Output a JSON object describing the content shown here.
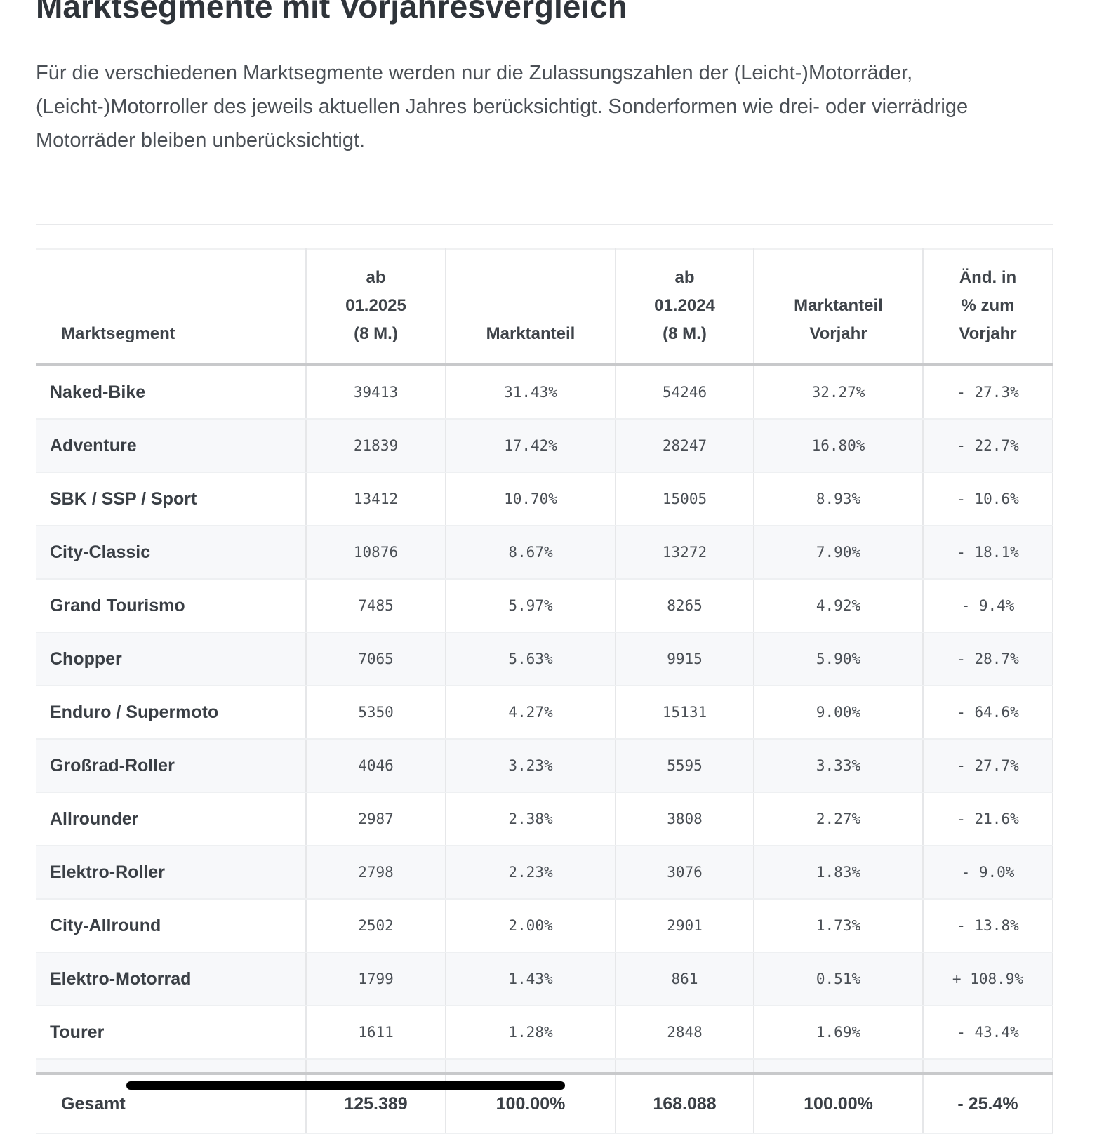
{
  "title": "Marktsegmente mit Vorjahresvergleich",
  "intro": "Für die verschiedenen Marktsegmente werden nur die Zulassungszahlen der (Leicht-)Motorräder, (Leicht-)Motorroller des jeweils aktuellen Jahres berücksichtigt. Sonderformen wie drei- oder vierrädrige Motorräder bleiben unberücksichtigt.",
  "table": {
    "headers": [
      [
        "Marktsegment"
      ],
      [
        "ab",
        "01.2025",
        "(8 M.)"
      ],
      [
        "Marktanteil"
      ],
      [
        "ab",
        "01.2024",
        "(8 M.)"
      ],
      [
        "Marktanteil",
        "Vorjahr"
      ],
      [
        "Änd. in",
        "% zum",
        "Vorjahr"
      ]
    ],
    "rows": [
      [
        "Naked-Bike",
        "39413",
        "31.43%",
        "54246",
        "32.27%",
        "- 27.3%"
      ],
      [
        "Adventure",
        "21839",
        "17.42%",
        "28247",
        "16.80%",
        "- 22.7%"
      ],
      [
        "SBK / SSP / Sport",
        "13412",
        "10.70%",
        "15005",
        "8.93%",
        "- 10.6%"
      ],
      [
        "City-Classic",
        "10876",
        "8.67%",
        "13272",
        "7.90%",
        "- 18.1%"
      ],
      [
        "Grand Tourismo",
        "7485",
        "5.97%",
        "8265",
        "4.92%",
        "- 9.4%"
      ],
      [
        "Chopper",
        "7065",
        "5.63%",
        "9915",
        "5.90%",
        "- 28.7%"
      ],
      [
        "Enduro / Supermoto",
        "5350",
        "4.27%",
        "15131",
        "9.00%",
        "- 64.6%"
      ],
      [
        "Großrad-Roller",
        "4046",
        "3.23%",
        "5595",
        "3.33%",
        "- 27.7%"
      ],
      [
        "Allrounder",
        "2987",
        "2.38%",
        "3808",
        "2.27%",
        "- 21.6%"
      ],
      [
        "Elektro-Roller",
        "2798",
        "2.23%",
        "3076",
        "1.83%",
        "- 9.0%"
      ],
      [
        "City-Allround",
        "2502",
        "2.00%",
        "2901",
        "1.73%",
        "- 13.8%"
      ],
      [
        "Elektro-Motorrad",
        "1799",
        "1.43%",
        "861",
        "0.51%",
        "+ 108.9%"
      ],
      [
        "Tourer",
        "1611",
        "1.28%",
        "2848",
        "1.69%",
        "- 43.4%"
      ]
    ],
    "total": [
      "Gesamt",
      "125.389",
      "100.00%",
      "168.088",
      "100.00%",
      "- 25.4%"
    ]
  }
}
